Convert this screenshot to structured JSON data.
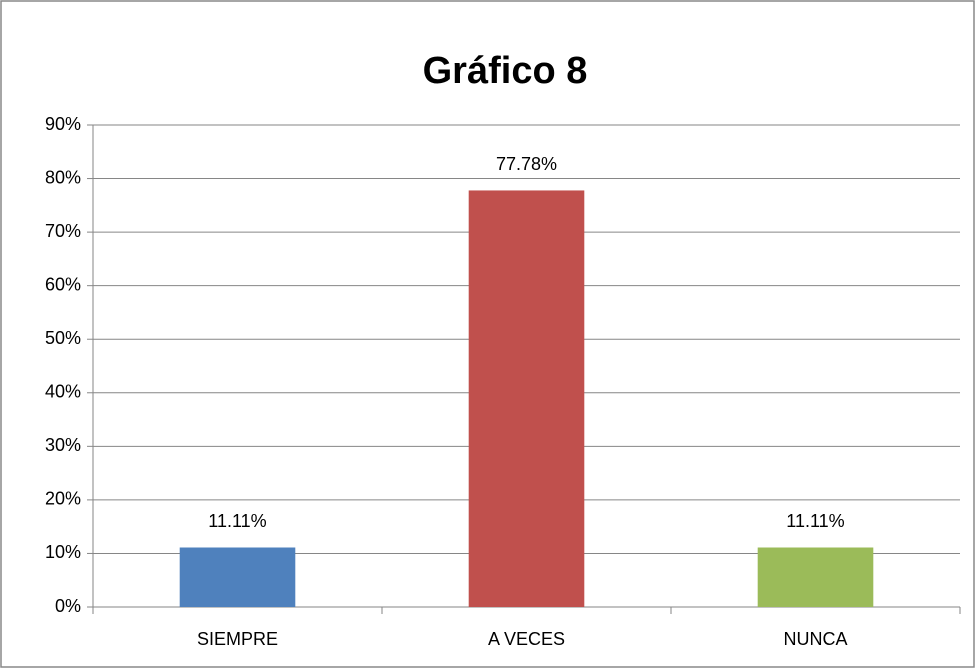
{
  "chart_data": {
    "type": "bar",
    "title": "Gráfico 8",
    "categories": [
      "SIEMPRE",
      "A VECES",
      "NUNCA"
    ],
    "values": [
      11.11,
      77.78,
      11.11
    ],
    "value_labels": [
      "11.11%",
      "77.78%",
      "11.11%"
    ],
    "colors": [
      "#4f81bd",
      "#c0504d",
      "#9bbb59"
    ],
    "ylim": [
      0,
      90
    ],
    "yticks": [
      {
        "value": 0,
        "label": "0%"
      },
      {
        "value": 10,
        "label": "10%"
      },
      {
        "value": 20,
        "label": "20%"
      },
      {
        "value": 30,
        "label": "30%"
      },
      {
        "value": 40,
        "label": "40%"
      },
      {
        "value": 50,
        "label": "50%"
      },
      {
        "value": 60,
        "label": "60%"
      },
      {
        "value": 70,
        "label": "70%"
      },
      {
        "value": 80,
        "label": "80%"
      },
      {
        "value": 90,
        "label": "90%"
      }
    ],
    "grid": true
  }
}
